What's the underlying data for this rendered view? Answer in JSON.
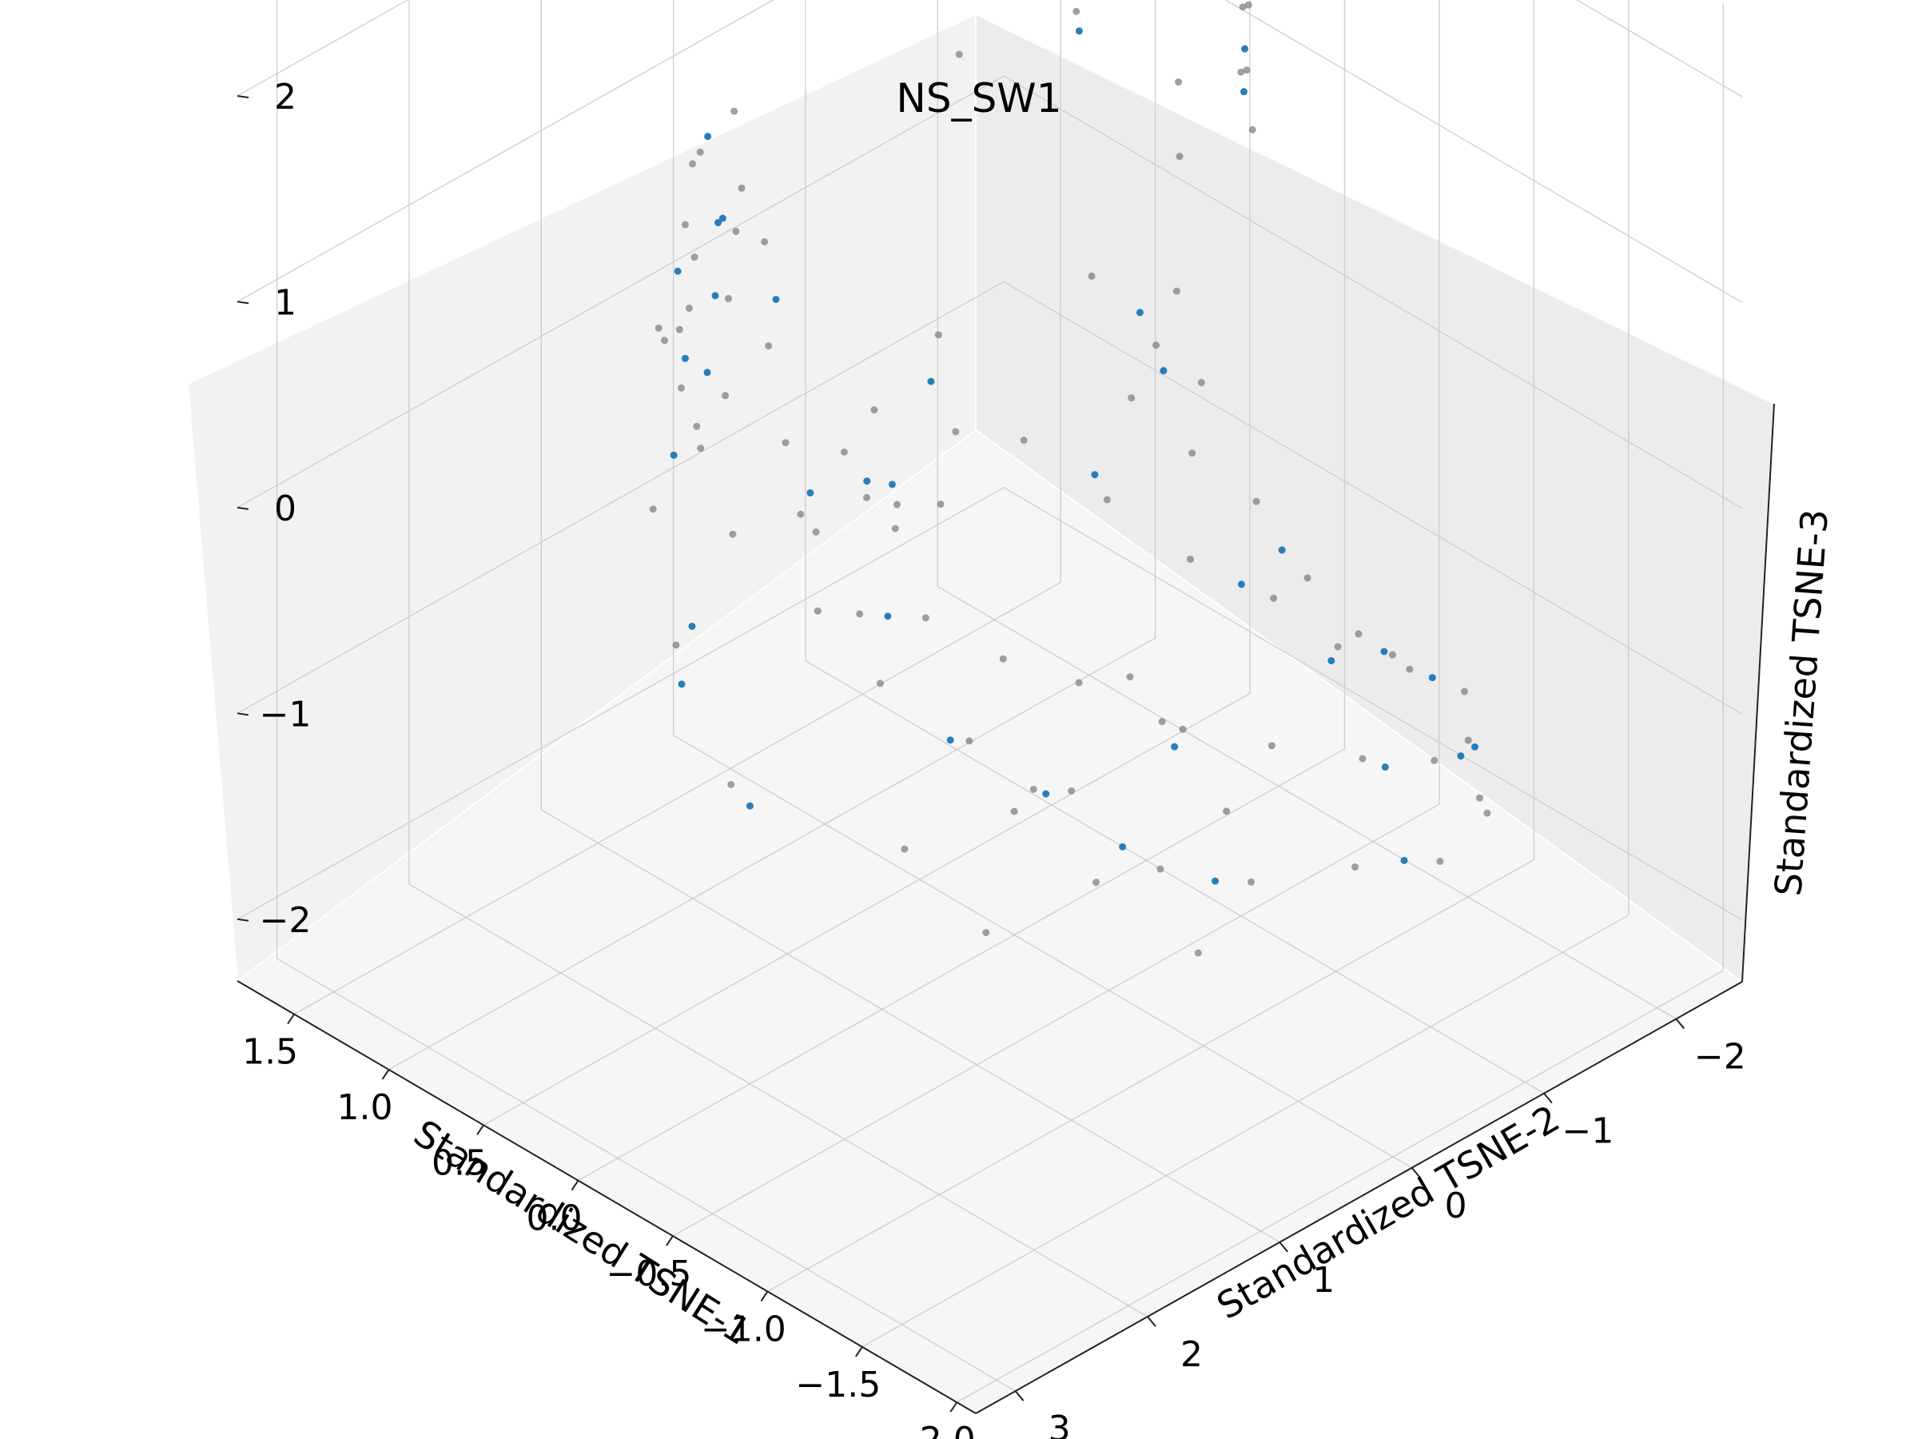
{
  "chart_data": {
    "type": "scatter",
    "projection": "3d",
    "title": "NS_SW1",
    "xlabel": "Standardized TSNE-1",
    "ylabel": "Standardized TSNE-2",
    "zlabel": "Standardized TSNE-3",
    "xlim": [
      -2.1,
      1.8
    ],
    "ylim": [
      -2.5,
      3.3
    ],
    "zlim": [
      -2.3,
      2.4
    ],
    "x_ticks": [
      "1.5",
      "1.0",
      "0.5",
      "0.0",
      "−0.5",
      "−1.0",
      "−1.5",
      "−2.0"
    ],
    "y_ticks": [
      "−2",
      "−1",
      "0",
      "1",
      "2",
      "3"
    ],
    "z_ticks": [
      "2",
      "1",
      "0",
      "−1",
      "−2"
    ],
    "grid": true,
    "series": [
      {
        "color": "#808080",
        "points": [
          [
            1.0,
            -0.9,
            2.3
          ],
          [
            0.8,
            -0.5,
            2.2
          ],
          [
            0.6,
            -0.2,
            2.1
          ],
          [
            0.95,
            -0.7,
            2.25
          ],
          [
            0.7,
            -0.4,
            2.3
          ],
          [
            -0.3,
            -1.3,
            1.9
          ],
          [
            -0.5,
            -1.0,
            1.8
          ],
          [
            -0.7,
            -0.8,
            1.7
          ],
          [
            -0.4,
            -1.2,
            2.0
          ],
          [
            -0.6,
            -0.9,
            1.9
          ],
          [
            1.2,
            0.4,
            1.2
          ],
          [
            1.1,
            0.8,
            1.2
          ],
          [
            0.9,
            1.2,
            1.1
          ],
          [
            0.6,
            1.6,
            1.0
          ],
          [
            0.2,
            1.9,
            0.9
          ],
          [
            1.3,
            0.2,
            0.7
          ],
          [
            1.2,
            0.7,
            0.6
          ],
          [
            1.0,
            1.1,
            0.5
          ],
          [
            0.7,
            1.4,
            0.3
          ],
          [
            0.3,
            1.7,
            0.1
          ],
          [
            1.3,
            0.3,
            0.2
          ],
          [
            1.2,
            0.8,
            0.0
          ],
          [
            1.0,
            1.3,
            -0.3
          ],
          [
            0.6,
            1.7,
            -0.6
          ],
          [
            0.1,
            2.0,
            -0.9
          ],
          [
            0.9,
            0.6,
            0.8
          ],
          [
            0.6,
            1.0,
            0.6
          ],
          [
            0.3,
            1.3,
            0.4
          ],
          [
            0.0,
            1.5,
            0.2
          ],
          [
            -0.3,
            1.6,
            0.0
          ],
          [
            0.5,
            0.9,
            -0.2
          ],
          [
            0.2,
            1.2,
            -0.4
          ],
          [
            -0.2,
            1.3,
            -0.5
          ],
          [
            -0.6,
            1.2,
            -0.6
          ],
          [
            -1.0,
            1.0,
            -0.7
          ],
          [
            -0.4,
            0.5,
            0.5
          ],
          [
            -0.7,
            0.3,
            0.3
          ],
          [
            -1.0,
            0.1,
            0.1
          ],
          [
            -1.3,
            -0.1,
            0.0
          ],
          [
            -1.5,
            -0.3,
            -0.2
          ],
          [
            -1.2,
            0.6,
            -0.4
          ],
          [
            -1.5,
            0.2,
            -0.5
          ],
          [
            -1.7,
            -0.2,
            -0.6
          ],
          [
            -1.8,
            -0.6,
            -0.7
          ],
          [
            -1.7,
            -1.0,
            -0.8
          ],
          [
            -1.4,
            0.9,
            -0.9
          ],
          [
            -1.6,
            0.5,
            -1.0
          ],
          [
            -1.8,
            0.0,
            -1.0
          ],
          [
            -1.9,
            -0.5,
            -1.1
          ],
          [
            -1.8,
            -1.0,
            -1.1
          ],
          [
            -0.9,
            0.8,
            -0.3
          ],
          [
            -1.1,
            0.7,
            -0.2
          ],
          [
            -0.8,
            1.0,
            -0.8
          ],
          [
            -1.2,
            1.1,
            -1.0
          ],
          [
            -1.6,
            0.9,
            -1.2
          ],
          [
            -0.2,
            -0.3,
            0.9
          ],
          [
            -0.4,
            -0.5,
            0.6
          ],
          [
            -0.2,
            -0.6,
            0.2
          ],
          [
            -0.5,
            -0.7,
            0.4
          ],
          [
            -0.3,
            -0.8,
            0.7
          ],
          [
            0.4,
            0.0,
            0.4
          ],
          [
            0.1,
            0.3,
            0.2
          ],
          [
            0.6,
            0.2,
            0.0
          ],
          [
            0.2,
            0.6,
            -0.1
          ],
          [
            0.5,
            0.4,
            -0.3
          ],
          [
            1.4,
            0.1,
            0.4
          ],
          [
            1.35,
            0.5,
            0.9
          ],
          [
            1.25,
            0.9,
            0.3
          ],
          [
            0.8,
            1.5,
            0.7
          ],
          [
            0.4,
            1.8,
            0.5
          ],
          [
            -1.6,
            -0.7,
            -0.4
          ],
          [
            -1.4,
            -0.6,
            -0.3
          ],
          [
            -1.75,
            -0.9,
            -0.5
          ],
          [
            -1.9,
            -0.8,
            -0.9
          ],
          [
            -1.3,
            -1.0,
            -0.6
          ],
          [
            0.75,
            -0.6,
            1.9
          ],
          [
            0.5,
            -0.3,
            1.6
          ],
          [
            -0.1,
            -1.1,
            1.5
          ],
          [
            -0.35,
            -0.75,
            1.4
          ],
          [
            0.3,
            -0.9,
            1.7
          ],
          [
            0.0,
            0.9,
            0.0
          ],
          [
            -0.3,
            1.1,
            -0.2
          ],
          [
            -0.5,
            0.8,
            -0.4
          ],
          [
            0.2,
            1.0,
            0.3
          ],
          [
            -0.1,
            0.7,
            0.1
          ],
          [
            -1.0,
            -0.4,
            0.2
          ],
          [
            -1.2,
            -0.5,
            -0.1
          ],
          [
            -0.8,
            -0.2,
            0.4
          ],
          [
            -1.1,
            0.3,
            -0.6
          ],
          [
            -1.4,
            0.4,
            -0.8
          ],
          [
            0.0,
            0.0,
            -1.7
          ],
          [
            0.3,
            0.4,
            -1.9
          ],
          [
            -0.2,
            0.5,
            -2.0
          ]
        ]
      },
      {
        "color": "#1f77b4",
        "points": [
          [
            1.0,
            -0.8,
            2.2
          ],
          [
            0.65,
            -0.35,
            2.15
          ],
          [
            -0.45,
            -1.1,
            1.85
          ],
          [
            -0.55,
            -0.95,
            1.75
          ],
          [
            1.2,
            0.6,
            1.15
          ],
          [
            0.8,
            1.4,
            1.0
          ],
          [
            0.4,
            1.75,
            0.85
          ],
          [
            1.25,
            0.45,
            0.65
          ],
          [
            0.9,
            1.2,
            0.45
          ],
          [
            1.1,
            1.0,
            -0.2
          ],
          [
            0.5,
            1.8,
            -0.7
          ],
          [
            0.0,
            2.0,
            -0.95
          ],
          [
            0.7,
            0.8,
            0.7
          ],
          [
            0.1,
            1.4,
            0.3
          ],
          [
            -0.5,
            1.2,
            -0.65
          ],
          [
            -0.9,
            1.05,
            -0.75
          ],
          [
            -0.6,
            0.25,
            0.35
          ],
          [
            -1.2,
            0.0,
            0.05
          ],
          [
            -1.5,
            -0.25,
            -0.25
          ],
          [
            -1.3,
            0.65,
            -0.45
          ],
          [
            -1.75,
            -0.3,
            -0.65
          ],
          [
            -1.8,
            -0.8,
            -0.75
          ],
          [
            -1.55,
            0.7,
            -0.95
          ],
          [
            -1.85,
            -0.3,
            -1.05
          ],
          [
            -0.35,
            -0.45,
            0.75
          ],
          [
            -0.3,
            -0.7,
            0.35
          ],
          [
            0.3,
            0.2,
            0.3
          ],
          [
            0.4,
            0.35,
            -0.2
          ],
          [
            1.4,
            0.2,
            0.5
          ],
          [
            -1.65,
            -0.8,
            -0.45
          ],
          [
            -1.5,
            -0.65,
            -0.35
          ],
          [
            -0.1,
            1.1,
            -0.3
          ],
          [
            -1.1,
            -0.45,
            0.0
          ],
          [
            0.15,
            0.9,
            0.15
          ],
          [
            1.3,
            0.4,
            0.25
          ],
          [
            0.25,
            -0.85,
            1.65
          ],
          [
            -1.2,
            0.9,
            -0.9
          ],
          [
            -1.7,
            -1.05,
            -0.85
          ],
          [
            0.55,
            1.65,
            -0.5
          ]
        ]
      }
    ]
  }
}
